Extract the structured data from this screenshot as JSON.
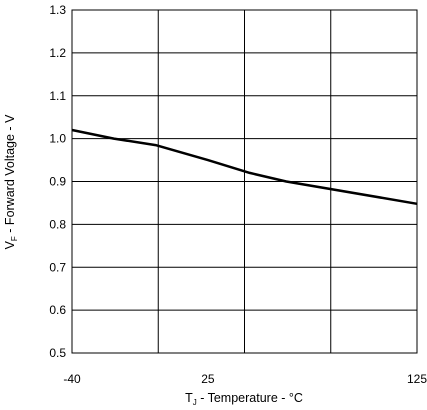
{
  "chart_data": {
    "type": "line",
    "title": "",
    "xlabel": {
      "main": "T",
      "sub": "J",
      "rest": " - Temperature - °C"
    },
    "ylabel": {
      "main": "V",
      "sub": "F",
      "rest": " - Forward Voltage - V"
    },
    "xlim": [
      -40,
      125
    ],
    "ylim": [
      0.5,
      1.3
    ],
    "x_ticks": [
      -40,
      25,
      125
    ],
    "x_tick_labels": [
      "-40",
      "25",
      "125"
    ],
    "x_grid_lines": 4,
    "y_ticks": [
      0.5,
      0.6,
      0.7,
      0.8,
      0.9,
      1.0,
      1.1,
      1.2,
      1.3
    ],
    "y_tick_labels": [
      "0.5",
      "0.6",
      "0.7",
      "0.8",
      "0.9",
      "1.0",
      "1.1",
      "1.2",
      "1.3"
    ],
    "grid": true,
    "legend": "none",
    "series": [
      {
        "x": [
          -40,
          -20,
          0,
          25,
          45,
          62.5,
          125
        ],
        "y": [
          1.02,
          1.0,
          0.985,
          0.95,
          0.92,
          0.9,
          0.848
        ],
        "color": "#000000"
      }
    ]
  }
}
